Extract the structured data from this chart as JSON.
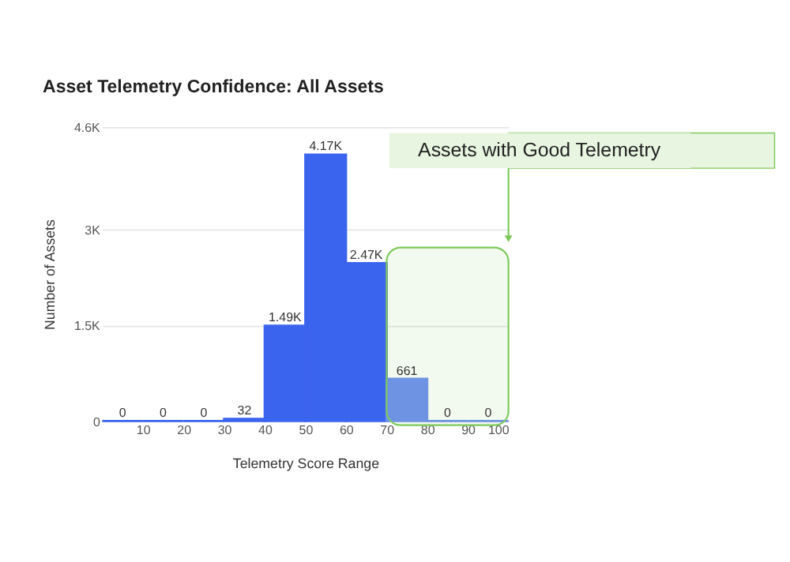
{
  "chart_data": {
    "type": "histogram",
    "title": "Asset Telemetry Confidence: All Assets",
    "xlabel": "Telemetry Score Range",
    "ylabel": "Number of Assets",
    "bins": [
      0,
      10,
      20,
      30,
      40,
      50,
      60,
      70,
      80,
      90,
      100
    ],
    "values": [
      0,
      0,
      0,
      32,
      1490,
      4170,
      2470,
      661,
      0,
      0
    ],
    "value_labels": [
      "0",
      "0",
      "0",
      "32",
      "1.49K",
      "4.17K",
      "2.47K",
      "661",
      "0",
      "0"
    ],
    "colors": [
      "#3b64ee",
      "#3b64ee",
      "#3b64ee",
      "#3b64ee",
      "#3b64ee",
      "#3b64ee",
      "#3b64ee",
      "#6d8ef3",
      "#6d8ef3",
      "#6d8ef3"
    ],
    "xlim": [
      0,
      100
    ],
    "xticks": [
      10,
      20,
      30,
      40,
      50,
      60,
      70,
      80,
      90,
      100
    ],
    "ylim": [
      0,
      4600
    ],
    "yticks": [
      0,
      {
        "value": 1500,
        "label": "1.5K"
      },
      {
        "value": 3000,
        "label": "3K"
      },
      {
        "value": 4600,
        "label": "4.6K"
      }
    ],
    "grid": "y",
    "bands": [
      {
        "axis": "x",
        "from": 70,
        "to": 100,
        "label": "Assets with Good Telemetry",
        "color": "#7cc95a"
      }
    ]
  }
}
